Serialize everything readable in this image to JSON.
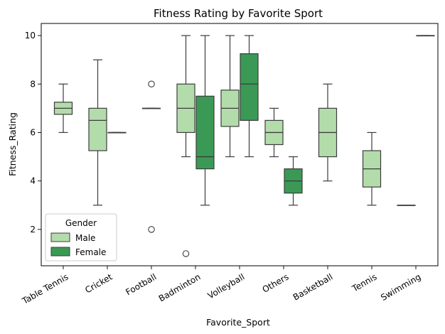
{
  "chart_data": {
    "type": "box",
    "title": "Fitness Rating by Favorite Sport",
    "xlabel": "Favorite_Sport",
    "ylabel": "Fitness_Rating",
    "ylim": [
      0.5,
      10.5
    ],
    "yticks": [
      "2",
      "4",
      "6",
      "8",
      "10"
    ],
    "categories": [
      "Table Tennis",
      "Cricket",
      "Football",
      "Badminton",
      "Volleyball",
      "Others",
      "Basketball",
      "Tennis",
      "Swimming"
    ],
    "legend": {
      "title": "Gender",
      "position": "lower-left"
    },
    "series": [
      {
        "name": "Male",
        "color": "#b3dcab",
        "boxes": [
          {
            "category": "Table Tennis",
            "whislo": 6,
            "q1": 6.75,
            "med": 7,
            "q3": 7.25,
            "whishi": 8,
            "fliers": []
          },
          {
            "category": "Cricket",
            "whislo": 3,
            "q1": 5.25,
            "med": 6.5,
            "q3": 7,
            "whishi": 9,
            "fliers": []
          },
          {
            "category": "Football",
            "whislo": 7,
            "q1": 7,
            "med": 7,
            "q3": 7,
            "whishi": 7,
            "fliers": [
              8,
              2
            ]
          },
          {
            "category": "Badminton",
            "whislo": 5,
            "q1": 6,
            "med": 7,
            "q3": 8,
            "whishi": 10,
            "fliers": [
              1
            ]
          },
          {
            "category": "Volleyball",
            "whislo": 5,
            "q1": 6.25,
            "med": 7,
            "q3": 7.75,
            "whishi": 10,
            "fliers": []
          },
          {
            "category": "Others",
            "whislo": 5,
            "q1": 5.5,
            "med": 6,
            "q3": 6.5,
            "whishi": 7,
            "fliers": []
          },
          {
            "category": "Basketball",
            "whislo": 4,
            "q1": 5,
            "med": 6,
            "q3": 7,
            "whishi": 8,
            "fliers": []
          },
          {
            "category": "Tennis",
            "whislo": 3,
            "q1": 3.75,
            "med": 4.5,
            "q3": 5.25,
            "whishi": 6,
            "fliers": []
          },
          {
            "category": "Swimming",
            "whislo": 3,
            "q1": 3,
            "med": 3,
            "q3": 3,
            "whishi": 3,
            "fliers": []
          }
        ]
      },
      {
        "name": "Female",
        "color": "#3a9a55",
        "boxes": [
          {
            "category": "Cricket",
            "whislo": 6,
            "q1": 6,
            "med": 6,
            "q3": 6,
            "whishi": 6,
            "fliers": []
          },
          {
            "category": "Badminton",
            "whislo": 3,
            "q1": 4.5,
            "med": 5,
            "q3": 7.5,
            "whishi": 10,
            "fliers": []
          },
          {
            "category": "Volleyball",
            "whislo": 5,
            "q1": 6.5,
            "med": 8,
            "q3": 9.25,
            "whishi": 10,
            "fliers": []
          },
          {
            "category": "Others",
            "whislo": 3,
            "q1": 3.5,
            "med": 4,
            "q3": 4.5,
            "whishi": 5,
            "fliers": []
          },
          {
            "category": "Swimming",
            "whislo": 10,
            "q1": 10,
            "med": 10,
            "q3": 10,
            "whishi": 10,
            "fliers": []
          }
        ]
      }
    ]
  }
}
